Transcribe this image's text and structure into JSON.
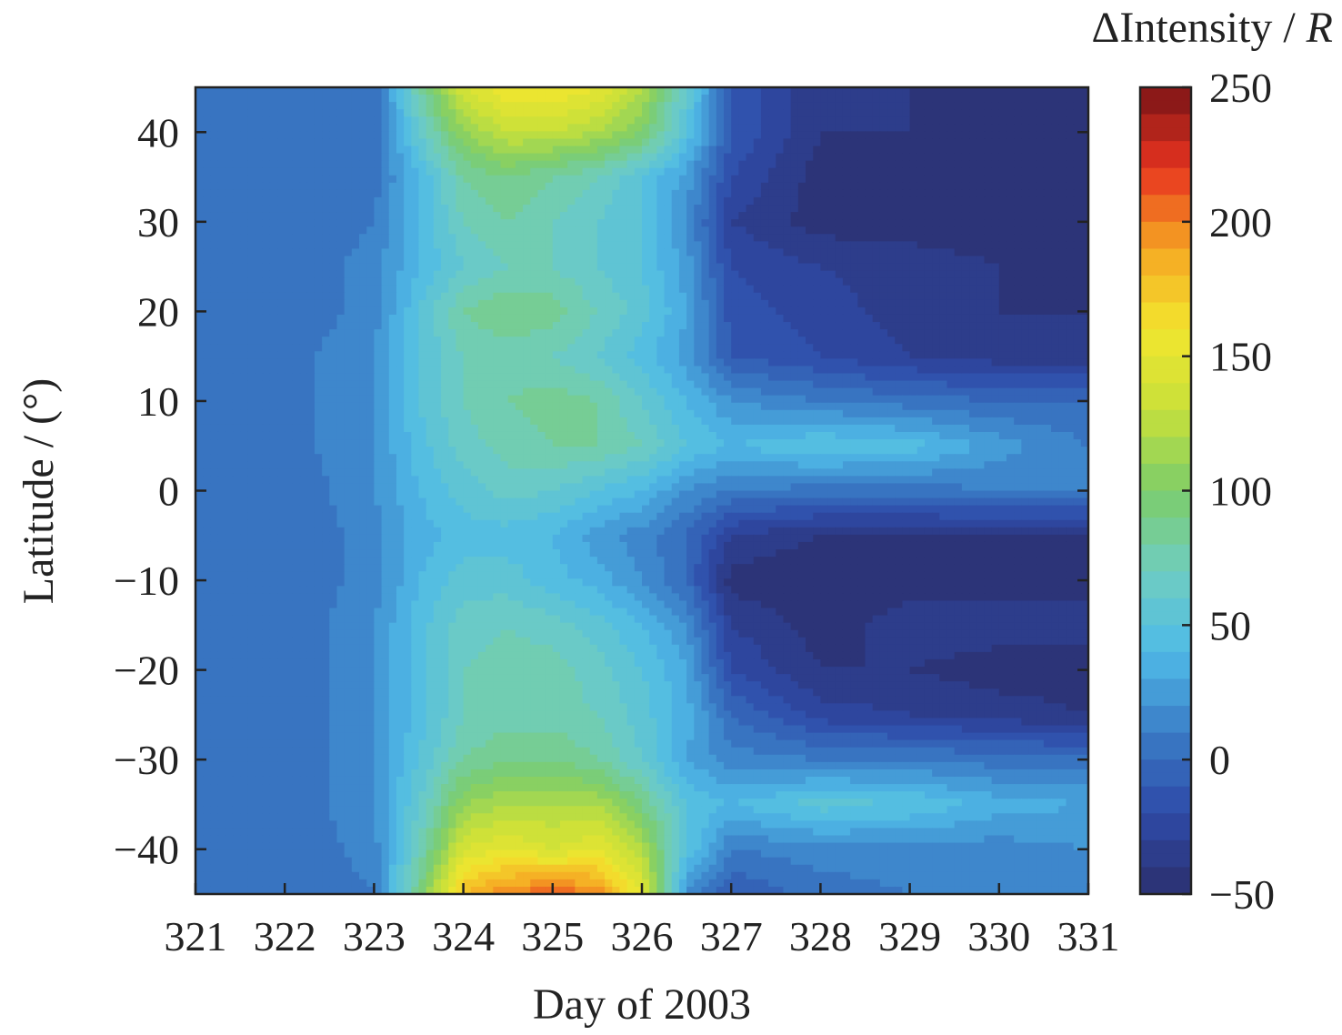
{
  "chart_data": {
    "type": "heatmap",
    "xlabel": "Day of 2003",
    "ylabel": "Latitude / (°)",
    "colorbar_label": "ΔIntensity / R",
    "colorbar_label_parts": {
      "prefix": "ΔIntensity / ",
      "unit": "R"
    },
    "xlim": [
      321,
      331
    ],
    "ylim": [
      -45,
      45
    ],
    "clim": [
      -50,
      250
    ],
    "x_ticks": [
      321,
      322,
      323,
      324,
      325,
      326,
      327,
      328,
      329,
      330,
      331
    ],
    "y_ticks": [
      -40,
      -30,
      -20,
      -10,
      0,
      10,
      20,
      30,
      40
    ],
    "colorbar_ticks": [
      -50,
      0,
      50,
      100,
      150,
      200,
      250
    ],
    "x_tick_labels": [
      "321",
      "322",
      "323",
      "324",
      "325",
      "326",
      "327",
      "328",
      "329",
      "330",
      "331"
    ],
    "y_tick_labels": [
      "−40",
      "−30",
      "−20",
      "−10",
      "0",
      "10",
      "20",
      "30",
      "40"
    ],
    "colorbar_tick_labels": [
      "−50",
      "0",
      "50",
      "100",
      "150",
      "200",
      "250"
    ],
    "colormap": [
      "#2b2f6e",
      "#2e4aa8",
      "#3a7cc6",
      "#4fbbe8",
      "#6fcdc0",
      "#7ccd6a",
      "#c8e03a",
      "#f2e62e",
      "#f5a623",
      "#e8331f",
      "#7a1417"
    ],
    "x": [
      321,
      322,
      323,
      323.5,
      324,
      324.5,
      325,
      325.5,
      326,
      326.5,
      327,
      328,
      329,
      330,
      331
    ],
    "y": [
      45,
      40,
      35,
      30,
      25,
      20,
      15,
      10,
      5,
      0,
      -5,
      -10,
      -15,
      -20,
      -25,
      -30,
      -35,
      -40,
      -45
    ],
    "z": [
      [
        0,
        0,
        0,
        80,
        140,
        160,
        160,
        150,
        120,
        60,
        -10,
        -40,
        -40,
        -45,
        -45
      ],
      [
        0,
        0,
        0,
        60,
        110,
        130,
        130,
        120,
        100,
        50,
        -10,
        -40,
        -40,
        -45,
        -45
      ],
      [
        0,
        0,
        5,
        40,
        80,
        90,
        80,
        70,
        50,
        25,
        -20,
        -45,
        -45,
        -45,
        -45
      ],
      [
        0,
        0,
        10,
        40,
        70,
        80,
        70,
        60,
        50,
        20,
        -30,
        -45,
        -45,
        -45,
        -45
      ],
      [
        0,
        0,
        15,
        40,
        60,
        70,
        70,
        60,
        50,
        25,
        -20,
        -30,
        -35,
        -40,
        -45
      ],
      [
        0,
        0,
        15,
        50,
        80,
        90,
        85,
        70,
        55,
        30,
        -15,
        -25,
        -35,
        -40,
        -40
      ],
      [
        0,
        5,
        20,
        50,
        70,
        75,
        70,
        60,
        45,
        25,
        -10,
        -20,
        -30,
        -35,
        -35
      ],
      [
        0,
        5,
        20,
        50,
        70,
        80,
        85,
        80,
        60,
        40,
        20,
        10,
        5,
        0,
        0
      ],
      [
        0,
        5,
        20,
        45,
        65,
        75,
        80,
        80,
        70,
        50,
        40,
        50,
        45,
        25,
        10
      ],
      [
        0,
        0,
        20,
        40,
        55,
        65,
        60,
        50,
        40,
        20,
        10,
        5,
        5,
        10,
        10
      ],
      [
        0,
        0,
        15,
        35,
        45,
        45,
        40,
        25,
        15,
        0,
        -30,
        -40,
        -40,
        -40,
        -40
      ],
      [
        0,
        0,
        15,
        40,
        55,
        55,
        45,
        35,
        20,
        0,
        -45,
        -50,
        -45,
        -45,
        -45
      ],
      [
        0,
        0,
        20,
        45,
        65,
        70,
        65,
        55,
        40,
        20,
        -30,
        -45,
        -35,
        -35,
        -35
      ],
      [
        0,
        0,
        20,
        45,
        70,
        75,
        75,
        65,
        50,
        30,
        -20,
        -40,
        -40,
        -45,
        -45
      ],
      [
        0,
        0,
        20,
        45,
        70,
        75,
        75,
        70,
        55,
        35,
        0,
        -25,
        -30,
        -35,
        -40
      ],
      [
        0,
        0,
        20,
        50,
        80,
        90,
        90,
        80,
        60,
        30,
        15,
        10,
        10,
        5,
        5
      ],
      [
        0,
        0,
        20,
        60,
        110,
        120,
        120,
        120,
        90,
        50,
        40,
        55,
        50,
        35,
        30
      ],
      [
        0,
        0,
        15,
        70,
        140,
        150,
        140,
        150,
        120,
        50,
        10,
        15,
        15,
        15,
        20
      ],
      [
        0,
        0,
        10,
        90,
        180,
        200,
        210,
        200,
        150,
        20,
        -10,
        5,
        10,
        15,
        15
      ]
    ]
  }
}
